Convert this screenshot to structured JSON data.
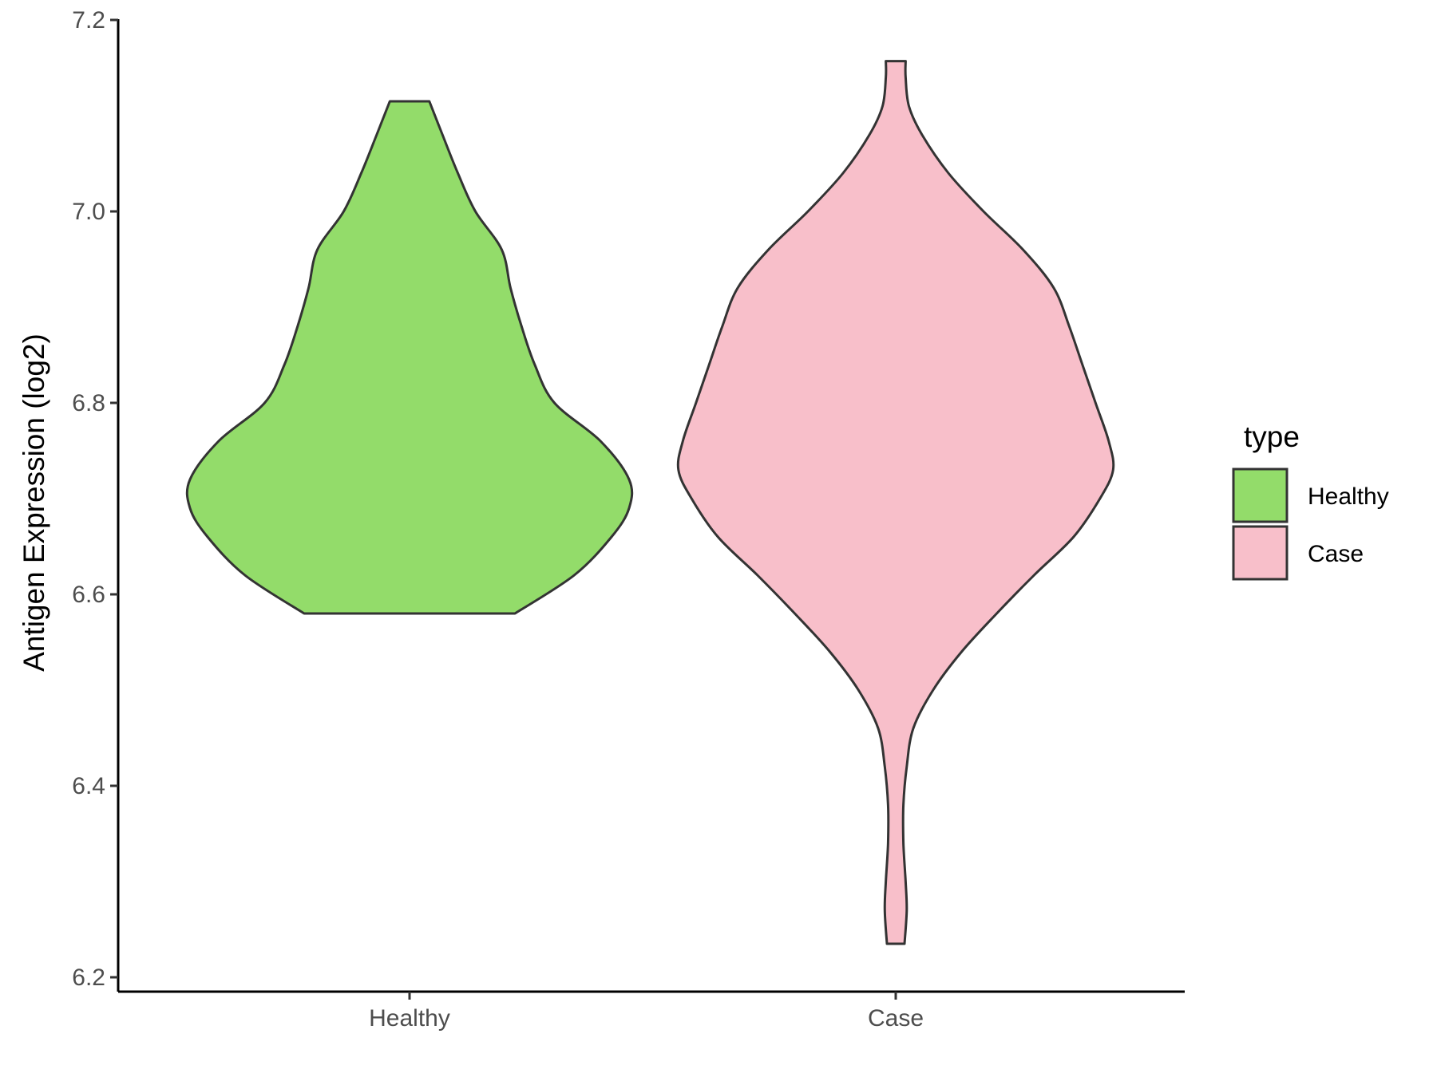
{
  "chart_data": {
    "type": "violin",
    "ylabel": "Antigen Expression (log2)",
    "xlabel": "",
    "ylim": [
      6.2,
      7.2
    ],
    "yticks": [
      "6.2",
      "6.4",
      "6.6",
      "6.8",
      "7.0",
      "7.2"
    ],
    "categories": [
      "Healthy",
      "Case"
    ],
    "grid": false,
    "legend": {
      "title": "type",
      "position": "right",
      "entries": [
        "Healthy",
        "Case"
      ]
    },
    "series": [
      {
        "name": "Healthy",
        "color": "#93dc6a",
        "min": 6.58,
        "max": 7.115,
        "density": [
          [
            6.58,
            0.48
          ],
          [
            6.62,
            0.75
          ],
          [
            6.66,
            0.92
          ],
          [
            6.69,
            1.0
          ],
          [
            6.72,
            1.0
          ],
          [
            6.76,
            0.87
          ],
          [
            6.8,
            0.66
          ],
          [
            6.84,
            0.57
          ],
          [
            6.88,
            0.51
          ],
          [
            6.92,
            0.46
          ],
          [
            6.96,
            0.42
          ],
          [
            7.0,
            0.3
          ],
          [
            7.04,
            0.22
          ],
          [
            7.08,
            0.15
          ],
          [
            7.115,
            0.09
          ]
        ]
      },
      {
        "name": "Case",
        "color": "#f8bfca",
        "min": 6.235,
        "max": 7.157,
        "density": [
          [
            6.235,
            0.04
          ],
          [
            6.27,
            0.05
          ],
          [
            6.3,
            0.045
          ],
          [
            6.34,
            0.035
          ],
          [
            6.38,
            0.035
          ],
          [
            6.42,
            0.05
          ],
          [
            6.46,
            0.08
          ],
          [
            6.5,
            0.17
          ],
          [
            6.54,
            0.3
          ],
          [
            6.58,
            0.46
          ],
          [
            6.62,
            0.63
          ],
          [
            6.66,
            0.81
          ],
          [
            6.7,
            0.93
          ],
          [
            6.73,
            0.99
          ],
          [
            6.76,
            0.97
          ],
          [
            6.8,
            0.91
          ],
          [
            6.84,
            0.85
          ],
          [
            6.88,
            0.79
          ],
          [
            6.92,
            0.72
          ],
          [
            6.96,
            0.58
          ],
          [
            7.0,
            0.4
          ],
          [
            7.04,
            0.24
          ],
          [
            7.08,
            0.12
          ],
          [
            7.11,
            0.06
          ],
          [
            7.14,
            0.045
          ],
          [
            7.157,
            0.045
          ]
        ]
      }
    ]
  }
}
